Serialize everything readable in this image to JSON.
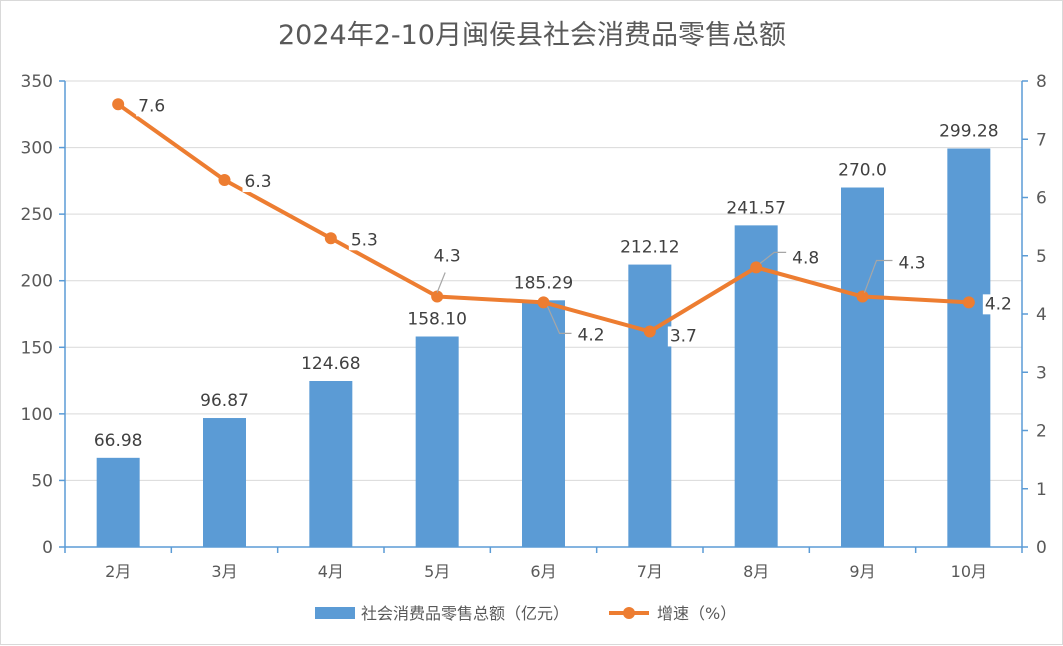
{
  "chart_data": {
    "type": "bar+line",
    "title": "2024年2-10月闽侯县社会消费品零售总额",
    "categories": [
      "2月",
      "3月",
      "4月",
      "5月",
      "6月",
      "7月",
      "8月",
      "9月",
      "10月"
    ],
    "series": [
      {
        "name": "社会消费品零售总额（亿元）",
        "type": "bar",
        "axis": "left",
        "values": [
          66.98,
          96.87,
          124.68,
          158.1,
          185.29,
          212.12,
          241.57,
          270.0,
          299.28
        ],
        "labels": [
          "66.98",
          "96.87",
          "124.68",
          "158.10",
          "185.29",
          "212.12",
          "241.57",
          "270.0",
          "299.28"
        ],
        "color": "#5b9bd5"
      },
      {
        "name": "增速（%）",
        "type": "line",
        "axis": "right",
        "values": [
          7.6,
          6.3,
          5.3,
          4.3,
          4.2,
          3.7,
          4.8,
          4.3,
          4.2
        ],
        "labels": [
          "7.6",
          "6.3",
          "5.3",
          "4.3",
          "4.2",
          "3.7",
          "4.8",
          "4.3",
          "4.2"
        ],
        "color": "#ed7d31"
      }
    ],
    "y_left": {
      "range": [
        0,
        350
      ],
      "ticks": [
        "0",
        "50",
        "100",
        "150",
        "200",
        "250",
        "300",
        "350"
      ]
    },
    "y_right": {
      "range": [
        0,
        8
      ],
      "ticks": [
        "0",
        "1",
        "2",
        "3",
        "4",
        "5",
        "6",
        "7",
        "8"
      ]
    },
    "grid": true,
    "legend_position": "bottom"
  }
}
